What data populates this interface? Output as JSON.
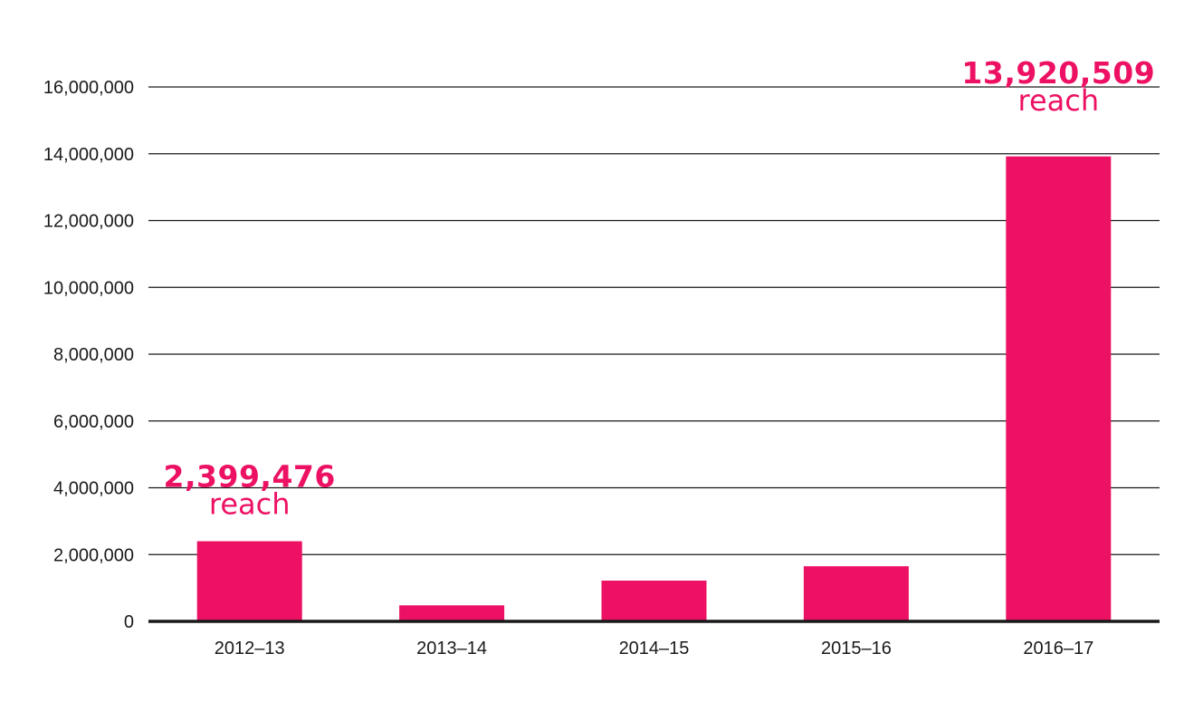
{
  "chart_data": {
    "type": "bar",
    "title": "",
    "xlabel": "",
    "ylabel": "",
    "categories": [
      "2012–13",
      "2013–14",
      "2014–15",
      "2015–16",
      "2016–17"
    ],
    "values": [
      2399476,
      480000,
      1220000,
      1650000,
      13920509
    ],
    "ylim": [
      0,
      16000000
    ],
    "y_ticks": [
      0,
      2000000,
      4000000,
      6000000,
      8000000,
      10000000,
      12000000,
      14000000,
      16000000
    ],
    "y_tick_labels": [
      "0",
      "2,000,000",
      "4,000,000",
      "6,000,000",
      "8,000,000",
      "10,000,000",
      "12,000,000",
      "14,000,000",
      "16,000,000"
    ],
    "grid": true,
    "bar_color": "#ed1164",
    "grid_color": "#1a1a1a",
    "axis_color": "#1a1a1a",
    "annotations": [
      {
        "category_index": 0,
        "value_text": "2,399,476",
        "label_text": "reach"
      },
      {
        "category_index": 4,
        "value_text": "13,920,509",
        "label_text": "reach"
      }
    ]
  }
}
